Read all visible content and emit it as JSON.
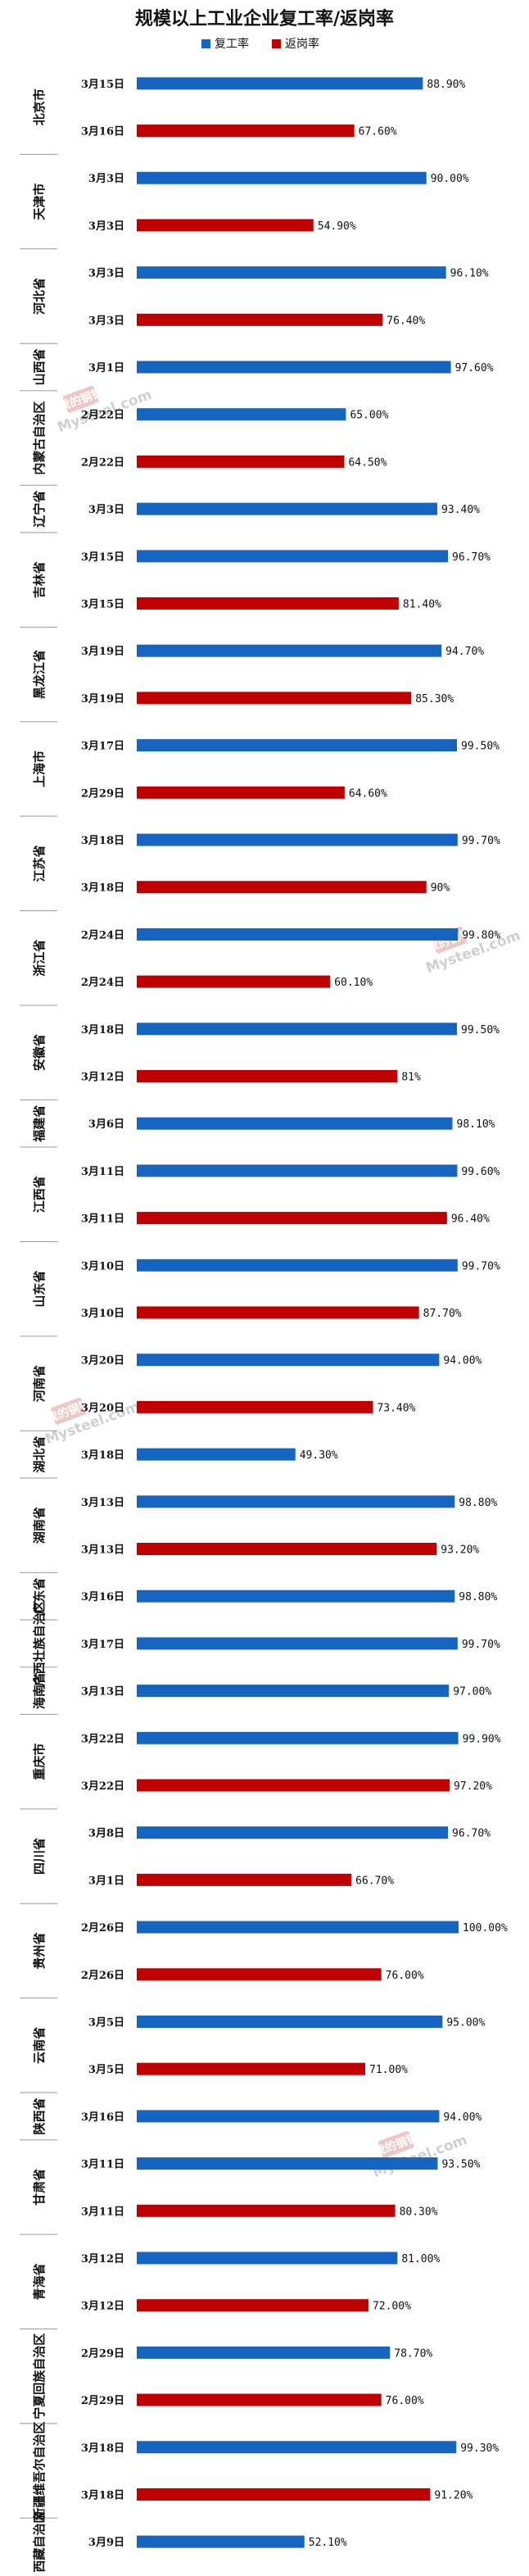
{
  "chart_data": {
    "type": "bar",
    "orientation": "horizontal",
    "title": "规模以上工业企业复工率/返岗率",
    "legend": [
      "复工率",
      "返岗率"
    ],
    "colors": {
      "复工率": "#1565c0",
      "返岗率": "#c00000"
    },
    "xlim": [
      0,
      100
    ],
    "grid": false,
    "rows": [
      {
        "date": "3月15日",
        "metric": "复工率",
        "value": 88.9,
        "label": "88.90%"
      },
      {
        "date": "3月16日",
        "metric": "返岗率",
        "value": 67.6,
        "label": "67.60%"
      },
      {
        "date": "3月3日",
        "metric": "复工率",
        "value": 90.0,
        "label": "90.00%"
      },
      {
        "date": "3月3日",
        "metric": "返岗率",
        "value": 54.9,
        "label": "54.90%"
      },
      {
        "date": "3月3日",
        "metric": "复工率",
        "value": 96.1,
        "label": "96.10%"
      },
      {
        "date": "3月3日",
        "metric": "返岗率",
        "value": 76.4,
        "label": "76.40%"
      },
      {
        "date": "3月1日",
        "metric": "复工率",
        "value": 97.6,
        "label": "97.60%"
      },
      {
        "date": "2月22日",
        "metric": "复工率",
        "value": 65.0,
        "label": "65.00%"
      },
      {
        "date": "2月22日",
        "metric": "返岗率",
        "value": 64.5,
        "label": "64.50%"
      },
      {
        "date": "3月3日",
        "metric": "复工率",
        "value": 93.4,
        "label": "93.40%"
      },
      {
        "date": "3月15日",
        "metric": "复工率",
        "value": 96.7,
        "label": "96.70%"
      },
      {
        "date": "3月15日",
        "metric": "返岗率",
        "value": 81.4,
        "label": "81.40%"
      },
      {
        "date": "3月19日",
        "metric": "复工率",
        "value": 94.7,
        "label": "94.70%"
      },
      {
        "date": "3月19日",
        "metric": "返岗率",
        "value": 85.3,
        "label": "85.30%"
      },
      {
        "date": "3月17日",
        "metric": "复工率",
        "value": 99.5,
        "label": "99.50%"
      },
      {
        "date": "2月29日",
        "metric": "返岗率",
        "value": 64.6,
        "label": "64.60%"
      },
      {
        "date": "3月18日",
        "metric": "复工率",
        "value": 99.7,
        "label": "99.70%"
      },
      {
        "date": "3月18日",
        "metric": "返岗率",
        "value": 90.0,
        "label": "90%"
      },
      {
        "date": "2月24日",
        "metric": "复工率",
        "value": 99.8,
        "label": "99.80%"
      },
      {
        "date": "2月24日",
        "metric": "返岗率",
        "value": 60.1,
        "label": "60.10%"
      },
      {
        "date": "3月18日",
        "metric": "复工率",
        "value": 99.5,
        "label": "99.50%"
      },
      {
        "date": "3月12日",
        "metric": "返岗率",
        "value": 81.0,
        "label": "81%"
      },
      {
        "date": "3月6日",
        "metric": "复工率",
        "value": 98.1,
        "label": "98.10%"
      },
      {
        "date": "3月11日",
        "metric": "复工率",
        "value": 99.6,
        "label": "99.60%"
      },
      {
        "date": "3月11日",
        "metric": "返岗率",
        "value": 96.4,
        "label": "96.40%"
      },
      {
        "date": "3月10日",
        "metric": "复工率",
        "value": 99.7,
        "label": "99.70%"
      },
      {
        "date": "3月10日",
        "metric": "返岗率",
        "value": 87.7,
        "label": "87.70%"
      },
      {
        "date": "3月20日",
        "metric": "复工率",
        "value": 94.0,
        "label": "94.00%"
      },
      {
        "date": "3月20日",
        "metric": "返岗率",
        "value": 73.4,
        "label": "73.40%"
      },
      {
        "date": "3月18日",
        "metric": "复工率",
        "value": 49.3,
        "label": "49.30%"
      },
      {
        "date": "3月13日",
        "metric": "复工率",
        "value": 98.8,
        "label": "98.80%"
      },
      {
        "date": "3月13日",
        "metric": "返岗率",
        "value": 93.2,
        "label": "93.20%"
      },
      {
        "date": "3月16日",
        "metric": "复工率",
        "value": 98.8,
        "label": "98.80%"
      },
      {
        "date": "3月17日",
        "metric": "复工率",
        "value": 99.7,
        "label": "99.70%"
      },
      {
        "date": "3月13日",
        "metric": "复工率",
        "value": 97.0,
        "label": "97.00%"
      },
      {
        "date": "3月22日",
        "metric": "复工率",
        "value": 99.9,
        "label": "99.90%"
      },
      {
        "date": "3月22日",
        "metric": "返岗率",
        "value": 97.2,
        "label": "97.20%"
      },
      {
        "date": "3月8日",
        "metric": "复工率",
        "value": 96.7,
        "label": "96.70%"
      },
      {
        "date": "3月1日",
        "metric": "返岗率",
        "value": 66.7,
        "label": "66.70%"
      },
      {
        "date": "2月26日",
        "metric": "复工率",
        "value": 100.0,
        "label": "100.00%"
      },
      {
        "date": "2月26日",
        "metric": "返岗率",
        "value": 76.0,
        "label": "76.00%"
      },
      {
        "date": "3月5日",
        "metric": "复工率",
        "value": 95.0,
        "label": "95.00%"
      },
      {
        "date": "3月5日",
        "metric": "返岗率",
        "value": 71.0,
        "label": "71.00%"
      },
      {
        "date": "3月16日",
        "metric": "复工率",
        "value": 94.0,
        "label": "94.00%"
      },
      {
        "date": "3月11日",
        "metric": "复工率",
        "value": 93.5,
        "label": "93.50%"
      },
      {
        "date": "3月11日",
        "metric": "返岗率",
        "value": 80.3,
        "label": "80.30%"
      },
      {
        "date": "3月12日",
        "metric": "复工率",
        "value": 81.0,
        "label": "81.00%"
      },
      {
        "date": "3月12日",
        "metric": "返岗率",
        "value": 72.0,
        "label": "72.00%"
      },
      {
        "date": "2月29日",
        "metric": "复工率",
        "value": 78.7,
        "label": "78.70%"
      },
      {
        "date": "2月29日",
        "metric": "返岗率",
        "value": 76.0,
        "label": "76.00%"
      },
      {
        "date": "3月18日",
        "metric": "复工率",
        "value": 99.3,
        "label": "99.30%"
      },
      {
        "date": "3月18日",
        "metric": "返岗率",
        "value": 91.2,
        "label": "91.20%"
      },
      {
        "date": "3月9日",
        "metric": "复工率",
        "value": 52.1,
        "label": "52.10%"
      }
    ],
    "regions": [
      {
        "name": "北京市",
        "rows": [
          0,
          1
        ]
      },
      {
        "name": "天津市",
        "rows": [
          2,
          3
        ]
      },
      {
        "name": "河北省",
        "rows": [
          4,
          5
        ]
      },
      {
        "name": "山西省",
        "rows": [
          6,
          6
        ]
      },
      {
        "name": "内蒙古自治区",
        "rows": [
          7,
          8
        ]
      },
      {
        "name": "辽宁省",
        "rows": [
          9,
          9
        ]
      },
      {
        "name": "吉林省",
        "rows": [
          10,
          11
        ]
      },
      {
        "name": "黑龙江省",
        "rows": [
          12,
          13
        ]
      },
      {
        "name": "上海市",
        "rows": [
          14,
          15
        ]
      },
      {
        "name": "江苏省",
        "rows": [
          16,
          17
        ]
      },
      {
        "name": "浙江省",
        "rows": [
          18,
          19
        ]
      },
      {
        "name": "安徽省",
        "rows": [
          20,
          21
        ]
      },
      {
        "name": "福建省",
        "rows": [
          22,
          22
        ]
      },
      {
        "name": "江西省",
        "rows": [
          23,
          24
        ]
      },
      {
        "name": "山东省",
        "rows": [
          25,
          26
        ]
      },
      {
        "name": "河南省",
        "rows": [
          27,
          28
        ]
      },
      {
        "name": "湖北省",
        "rows": [
          29,
          29
        ]
      },
      {
        "name": "湖南省",
        "rows": [
          30,
          31
        ]
      },
      {
        "name": "广东省",
        "rows": [
          32,
          32
        ]
      },
      {
        "name": "广西壮族自治区",
        "rows": [
          33,
          33
        ]
      },
      {
        "name": "海南省",
        "rows": [
          34,
          34
        ]
      },
      {
        "name": "重庆市",
        "rows": [
          35,
          36
        ]
      },
      {
        "name": "四川省",
        "rows": [
          37,
          38
        ]
      },
      {
        "name": "贵州省",
        "rows": [
          39,
          40
        ]
      },
      {
        "name": "云南省",
        "rows": [
          41,
          42
        ]
      },
      {
        "name": "陕西省",
        "rows": [
          43,
          43
        ]
      },
      {
        "name": "甘肃省",
        "rows": [
          44,
          45
        ]
      },
      {
        "name": "青海省",
        "rows": [
          46,
          47
        ]
      },
      {
        "name": "宁夏回族自治区",
        "rows": [
          48,
          49
        ]
      },
      {
        "name": "新疆维吾尔自治区",
        "rows": [
          50,
          51
        ]
      },
      {
        "name": "西藏自治区",
        "rows": [
          52,
          52
        ]
      }
    ]
  },
  "watermark": {
    "top": "我的钢铁",
    "bottom": "Mysteel.com"
  }
}
